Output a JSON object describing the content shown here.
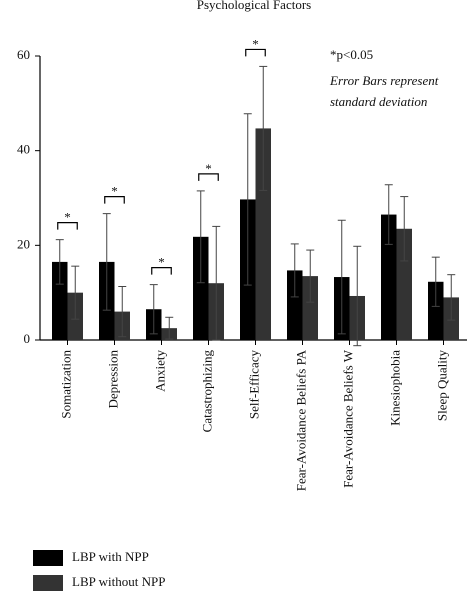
{
  "chart_data": {
    "type": "bar",
    "title": "Psychological Factors",
    "categories": [
      "Somatization",
      "Depression",
      "Anxiety",
      "Catastrophizing",
      "Self-Efficacy",
      "Fear-Avoidance Beliefs PA",
      "Fear-Avoidance Beliefs W",
      "Kinesiophobia",
      "Sleep Quality"
    ],
    "series": [
      {
        "name": "LBP with NPP",
        "color": "#000000",
        "values": [
          16.5,
          16.5,
          6.5,
          21.8,
          29.7,
          14.7,
          13.3,
          26.5,
          12.3
        ],
        "errors": [
          4.7,
          10.2,
          5.2,
          9.7,
          18.1,
          5.6,
          12,
          6.3,
          5.2
        ]
      },
      {
        "name": "LBP without NPP",
        "color": "#333333",
        "values": [
          10,
          6,
          2.5,
          12,
          44.7,
          13.5,
          9.3,
          23.5,
          9
        ],
        "errors": [
          5.6,
          5.3,
          2.3,
          12,
          13.1,
          5.5,
          10.5,
          6.8,
          4.8
        ]
      }
    ],
    "significance_marks": [
      "*",
      "*",
      "*",
      "*",
      "*",
      null,
      null,
      null,
      null
    ],
    "notes": [
      "*p<0.05",
      "Error Bars represent",
      "standard deviation"
    ],
    "ylim": [
      0,
      60
    ],
    "yticks": [
      0,
      20,
      40,
      60
    ],
    "legend": "bottom-left"
  }
}
